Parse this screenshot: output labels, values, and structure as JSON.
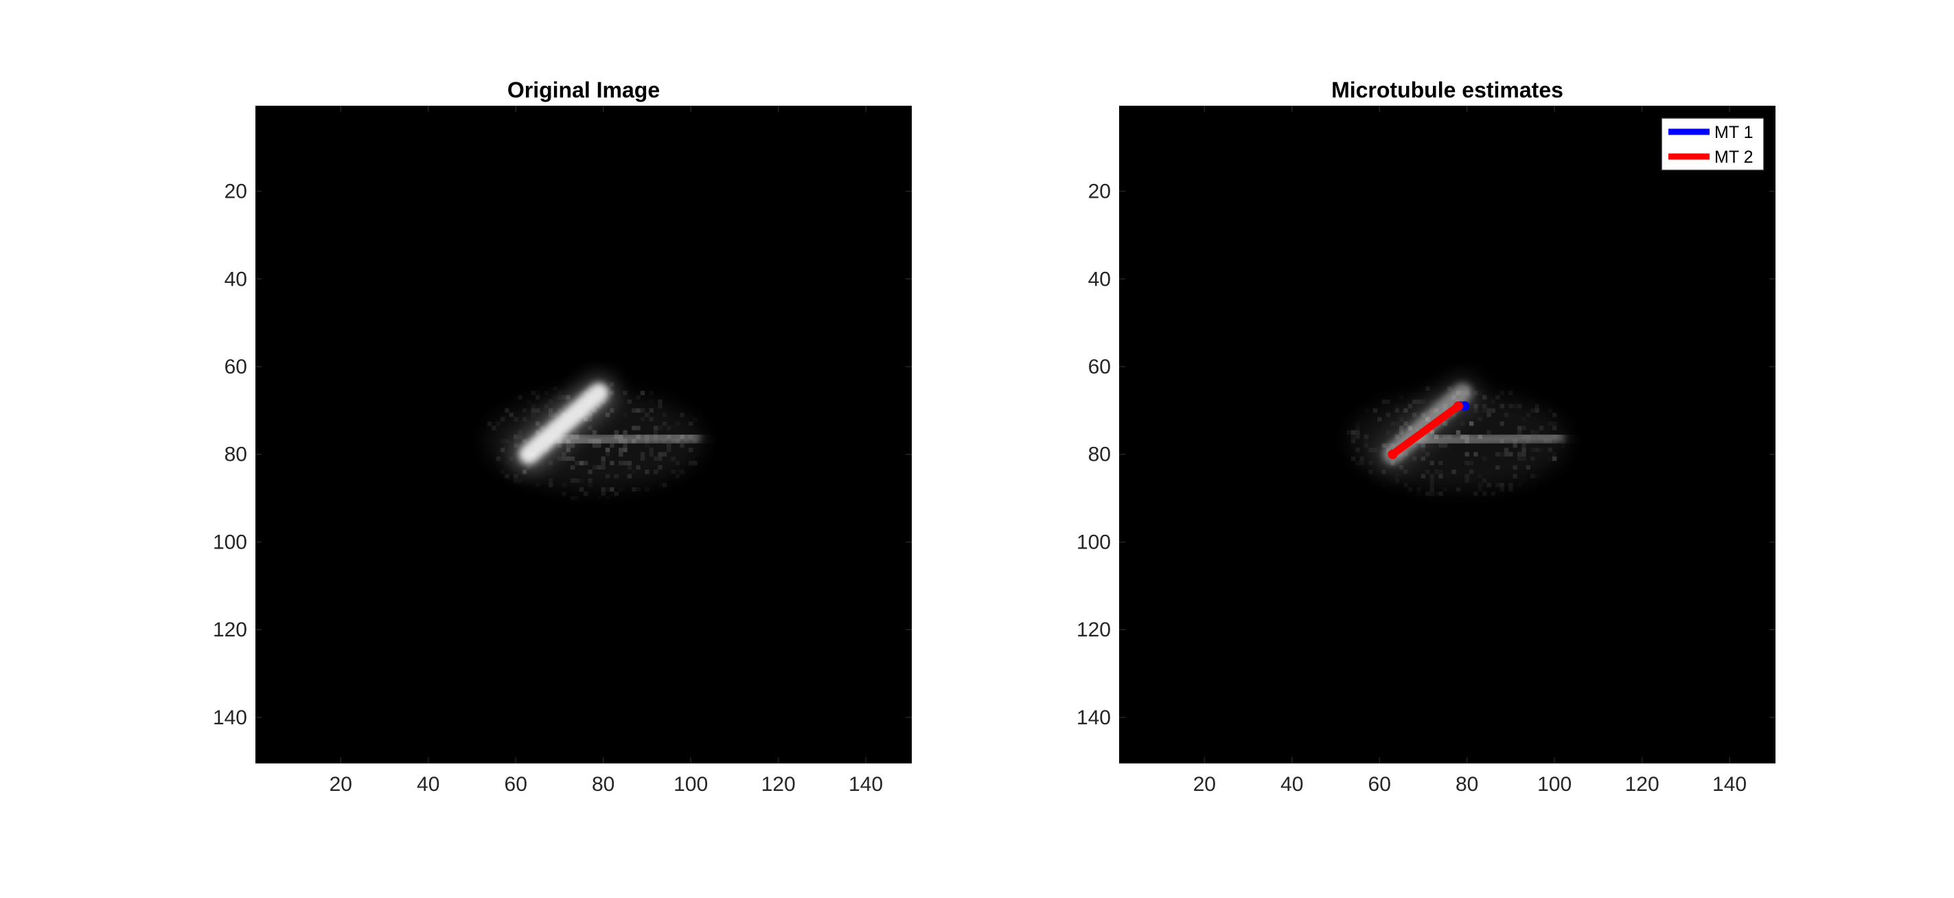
{
  "figure_background": "#ffffff",
  "chart_data": [
    {
      "type": "heatmap",
      "title": "Original Image",
      "xlabel": "",
      "ylabel": "",
      "xlim": [
        0.5,
        150.5
      ],
      "ylim": [
        0.5,
        150.5
      ],
      "y_reversed": true,
      "xticks": [
        20,
        40,
        60,
        80,
        100,
        120,
        140
      ],
      "yticks": [
        20,
        40,
        60,
        80,
        100,
        120,
        140
      ],
      "colormap": "gray",
      "background_color": "#000000",
      "grid": false,
      "image_features": [
        {
          "kind": "bright-streak",
          "from": [
            63,
            80
          ],
          "to": [
            79,
            66
          ],
          "peak_intensity": 0.85
        },
        {
          "kind": "faint-streak",
          "from": [
            70,
            77
          ],
          "to": [
            101,
            76
          ],
          "peak_intensity": 0.3
        },
        {
          "kind": "speckle-cloud",
          "x_range": [
            53,
            103
          ],
          "y_range": [
            63,
            91
          ],
          "peak_intensity": 0.2
        }
      ]
    },
    {
      "type": "heatmap",
      "title": "Microtubule estimates",
      "xlabel": "",
      "ylabel": "",
      "xlim": [
        0.5,
        150.5
      ],
      "ylim": [
        0.5,
        150.5
      ],
      "y_reversed": true,
      "xticks": [
        20,
        40,
        60,
        80,
        100,
        120,
        140
      ],
      "yticks": [
        20,
        40,
        60,
        80,
        100,
        120,
        140
      ],
      "colormap": "gray",
      "background_color": "#000000",
      "grid": false,
      "legend_position": "top-right",
      "image_features": [
        {
          "kind": "bright-streak",
          "from": [
            63,
            80
          ],
          "to": [
            79,
            66
          ],
          "peak_intensity": 0.4
        },
        {
          "kind": "faint-streak",
          "from": [
            70,
            77
          ],
          "to": [
            101,
            76
          ],
          "peak_intensity": 0.3
        },
        {
          "kind": "speckle-cloud",
          "x_range": [
            53,
            103
          ],
          "y_range": [
            63,
            91
          ],
          "peak_intensity": 0.2
        }
      ],
      "series": [
        {
          "name": "MT 1",
          "color": "#0000ff",
          "x": [
            78.5,
            79.5
          ],
          "y": [
            69,
            69
          ]
        },
        {
          "name": "MT 2",
          "color": "#ff0000",
          "x": [
            63,
            78
          ],
          "y": [
            80,
            69
          ]
        }
      ]
    }
  ]
}
